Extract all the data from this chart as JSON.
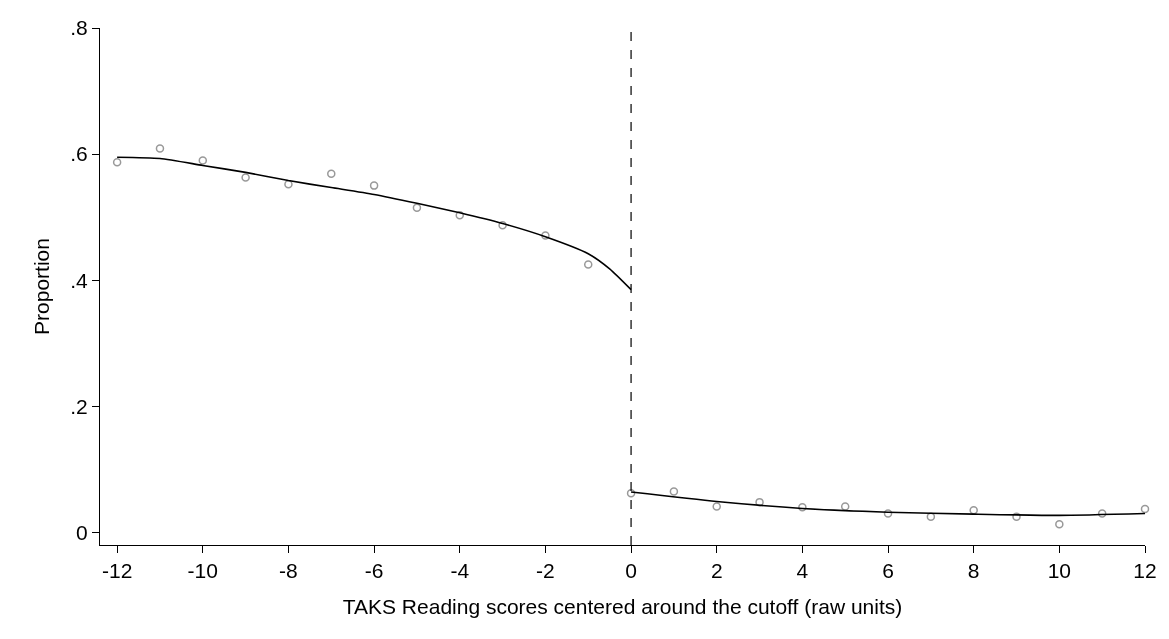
{
  "chart_data": {
    "type": "scatter",
    "xlabel": "TAKS Reading scores centered around the cutoff (raw units)",
    "ylabel": "Proportion",
    "xlim": [
      -12.4,
      12
    ],
    "xticks": [
      -12,
      -10,
      -8,
      -6,
      -4,
      -2,
      0,
      2,
      4,
      6,
      8,
      10,
      12
    ],
    "ylim": [
      -0.02,
      0.8
    ],
    "yticks": [
      {
        "value": 0,
        "label": "0"
      },
      {
        "value": 0.2,
        "label": ".2"
      },
      {
        "value": 0.4,
        "label": ".4"
      },
      {
        "value": 0.6,
        "label": ".6"
      },
      {
        "value": 0.8,
        "label": ".8"
      }
    ],
    "series": [
      {
        "marker": "circle",
        "color": "#999999",
        "x": [
          -12,
          -11,
          -10,
          -9,
          -8,
          -7,
          -6,
          -5,
          -4,
          -3,
          -2,
          -1,
          0,
          1,
          2,
          3,
          4,
          5,
          6,
          7,
          8,
          9,
          10,
          11,
          12
        ],
        "values": [
          0.587,
          0.609,
          0.59,
          0.563,
          0.552,
          0.569,
          0.55,
          0.515,
          0.503,
          0.487,
          0.471,
          0.425,
          0.062,
          0.065,
          0.041,
          0.048,
          0.04,
          0.041,
          0.03,
          0.025,
          0.035,
          0.025,
          0.013,
          0.03,
          0.037
        ]
      },
      {
        "type": "line",
        "marker": "none",
        "line_style": "solid",
        "color": "#000000",
        "x": [
          -12,
          -11,
          -10,
          -9,
          -8,
          -7,
          -6,
          -5,
          -4,
          -3,
          -2,
          -1,
          -0.5,
          0
        ],
        "values": [
          0.595,
          0.593,
          0.582,
          0.571,
          0.558,
          0.547,
          0.536,
          0.522,
          0.507,
          0.49,
          0.469,
          0.442,
          0.418,
          0.385
        ]
      },
      {
        "type": "line",
        "marker": "none",
        "line_style": "solid",
        "color": "#000000",
        "x": [
          0,
          2,
          4,
          6,
          8,
          10,
          12
        ],
        "values": [
          0.064,
          0.049,
          0.038,
          0.032,
          0.029,
          0.027,
          0.03
        ]
      }
    ],
    "ref_lines": [
      {
        "axis": "x",
        "value": 0,
        "label": null,
        "color": "#000000",
        "line_style": "dashed"
      }
    ]
  }
}
